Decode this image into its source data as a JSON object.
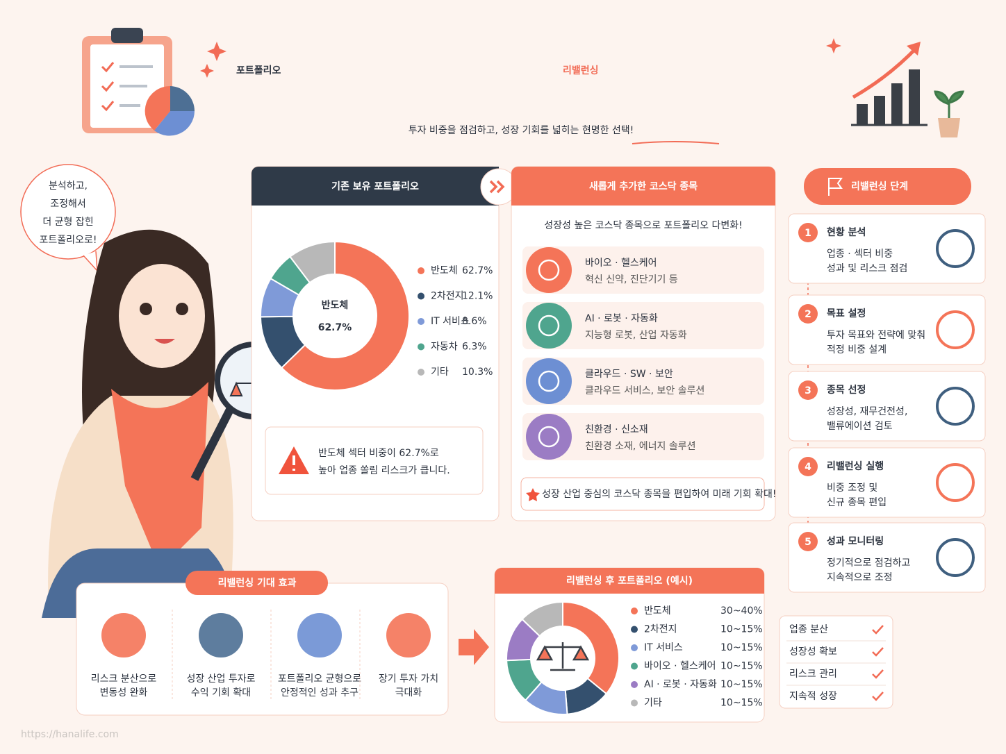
{
  "header": {
    "title_a": "포트폴리오",
    "title_b": "리밸런싱",
    "subtitle": "투자 비중을 점검하고, 성장 기회를 넓히는 현명한 선택!"
  },
  "speech": [
    "분석하고,",
    "조정해서",
    "더 균형 잡힌",
    "포트폴리오로!"
  ],
  "current": {
    "title": "기존 보유 포트폴리오",
    "warning": [
      "반도체 섹터 비중이 62.7%로",
      "높아 업종 쏠림 리스크가 큽니다."
    ]
  },
  "new_stocks": {
    "title": "새롭게 추가한 코스닥 종목",
    "intro": "성장성 높은 코스닥 종목으로 포트폴리오 다변화!",
    "items": [
      {
        "name": "바이오 · 헬스케어",
        "desc": "혁신 신약, 진단기기 등"
      },
      {
        "name": "AI · 로봇 · 자동화",
        "desc": "지능형 로봇, 산업 자동화"
      },
      {
        "name": "클라우드 · SW · 보안",
        "desc": "클라우드 서비스, 보안 솔루션"
      },
      {
        "name": "친환경 · 신소재",
        "desc": "친환경 소재, 에너지 솔루션"
      }
    ],
    "note": "성장 산업 중심의 코스닥 종목을 편입하여 미래 기회 확대!"
  },
  "steps": {
    "title": "리밸런싱 단계",
    "items": [
      {
        "num": "1",
        "name": "현황 분석",
        "desc": [
          "업종 · 섹터 비중",
          "성과 및 리스크 점검"
        ]
      },
      {
        "num": "2",
        "name": "목표 설정",
        "desc": [
          "투자 목표와 전략에 맞춰",
          "적정 비중 설계"
        ]
      },
      {
        "num": "3",
        "name": "종목 선정",
        "desc": [
          "성장성, 재무건전성,",
          "밸류에이션 검토"
        ]
      },
      {
        "num": "4",
        "name": "리밸런싱 실행",
        "desc": [
          "비중 조정 및",
          "신규 종목 편입"
        ]
      },
      {
        "num": "5",
        "name": "성과 모니터링",
        "desc": [
          "정기적으로 점검하고",
          "지속적으로 조정"
        ]
      }
    ]
  },
  "effects": {
    "title": "리밸런싱 기대 효과",
    "items": [
      [
        "리스크 분산으로",
        "변동성 완화"
      ],
      [
        "성장 산업 투자로",
        "수익 기회 확대"
      ],
      [
        "포트폴리오 균형으로",
        "안정적인 성과 추구"
      ],
      [
        "장기 투자 가치",
        "극대화"
      ]
    ]
  },
  "after": {
    "title": "리밸런싱 후 포트폴리오 (예시)"
  },
  "checklist": [
    "업종 분산",
    "성장성 확보",
    "리스크 관리",
    "지속적 성장"
  ],
  "footer": "https://hanalife.com",
  "chart_data": [
    {
      "type": "donut",
      "categories": [
        "반도체",
        "2차전지",
        "IT 서비스",
        "자동차",
        "기타"
      ],
      "values": [
        62.7,
        12.1,
        8.6,
        6.3,
        10.3
      ],
      "value_labels": [
        "62.7%",
        "12.1%",
        "8.6%",
        "6.3%",
        "10.3%"
      ],
      "colors": [
        "#f47458",
        "#34506e",
        "#7f9ad8",
        "#4fa58e",
        "#b8b8b8"
      ]
    },
    {
      "type": "donut",
      "categories": [
        "반도체",
        "2차전지",
        "IT 서비스",
        "바이오 · 헬스케어",
        "AI · 로봇 · 자동화",
        "기타"
      ],
      "values": [
        35,
        12.5,
        12.5,
        12.5,
        12.5,
        12.5
      ],
      "value_labels": [
        "30~40%",
        "10~15%",
        "10~15%",
        "10~15%",
        "10~15%",
        "10~15%"
      ],
      "colors": [
        "#f47458",
        "#34506e",
        "#7f9ad8",
        "#4fa58e",
        "#9b7cc4",
        "#b8b8b8"
      ]
    }
  ]
}
